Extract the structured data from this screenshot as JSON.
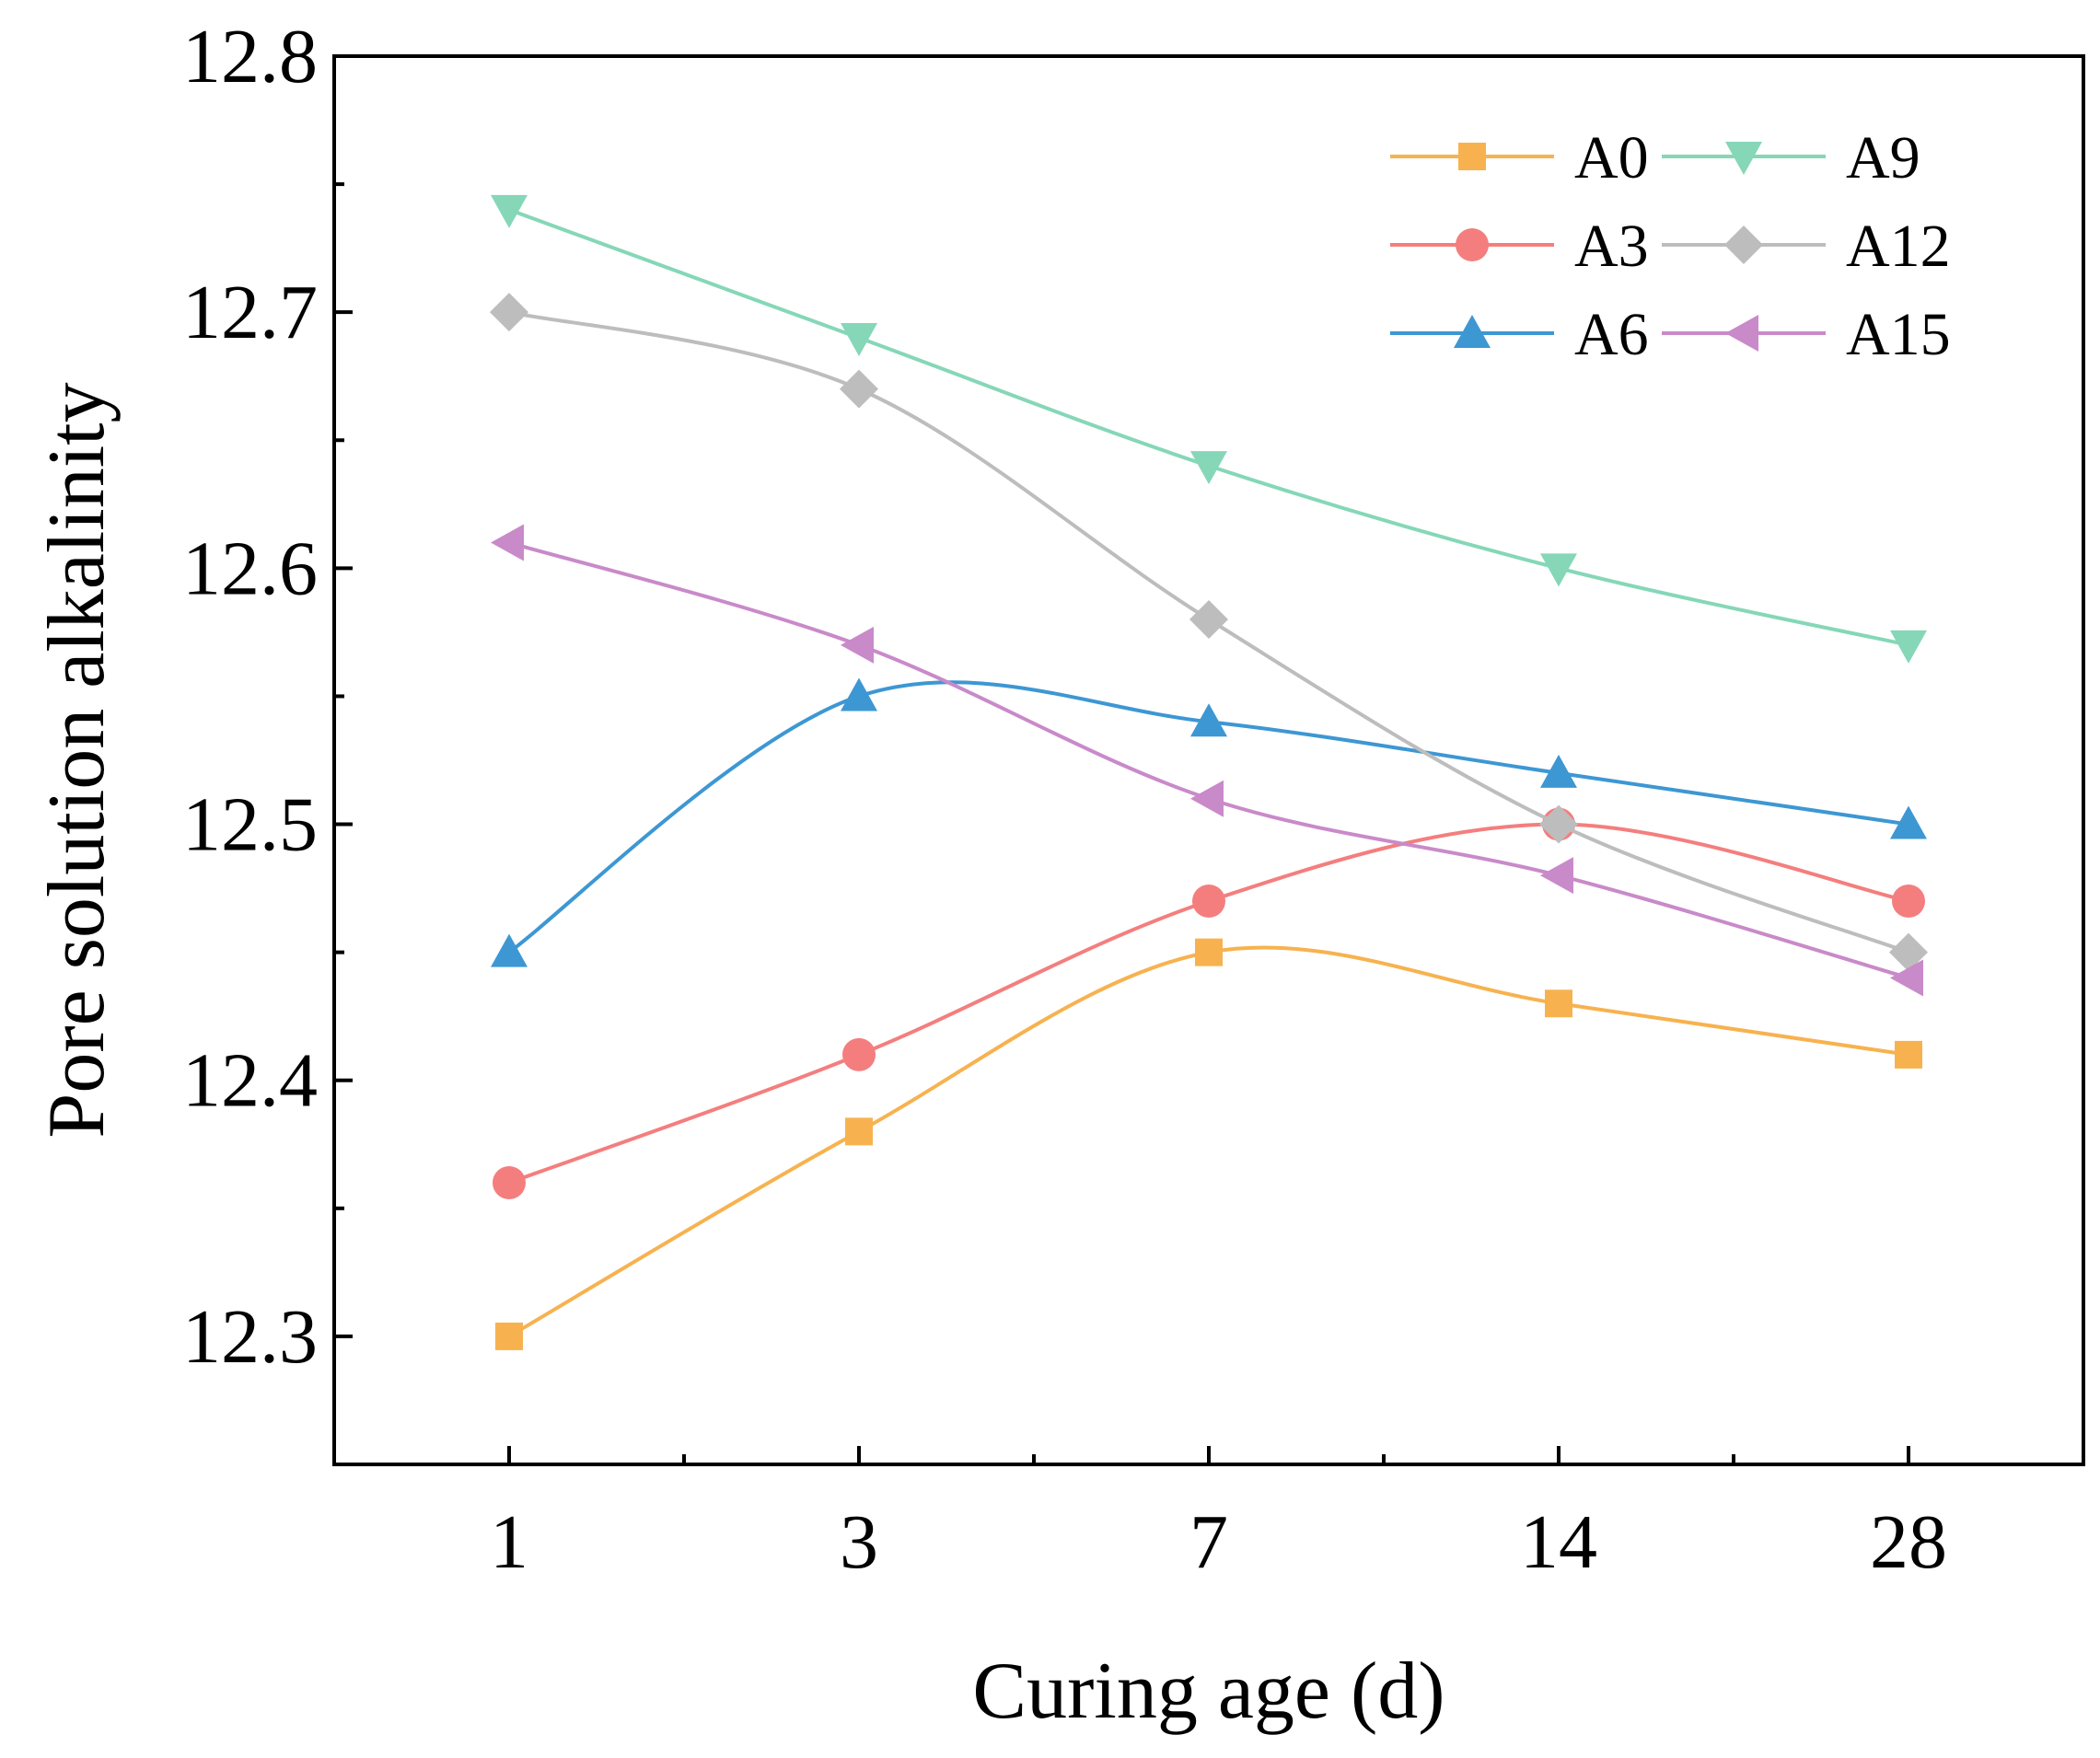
{
  "chart_data": {
    "type": "line",
    "title": "",
    "xlabel": "Curing age (d)",
    "ylabel": "Pore solution alkalinity",
    "categories": [
      "1",
      "3",
      "7",
      "14",
      "28"
    ],
    "ylim": [
      12.25,
      12.8
    ],
    "yticks": [
      "12.3",
      "12.4",
      "12.5",
      "12.6",
      "12.7",
      "12.8"
    ],
    "grid": false,
    "legend_position": "top-right",
    "series": [
      {
        "name": "A0",
        "color": "#F7B24F",
        "marker": "square",
        "values": [
          12.3,
          12.38,
          12.45,
          12.43,
          12.41
        ]
      },
      {
        "name": "A3",
        "color": "#F47E7E",
        "marker": "circle",
        "values": [
          12.36,
          12.41,
          12.47,
          12.5,
          12.47
        ]
      },
      {
        "name": "A6",
        "color": "#3D97D3",
        "marker": "triangle-up",
        "values": [
          12.45,
          12.55,
          12.54,
          12.52,
          12.5
        ]
      },
      {
        "name": "A9",
        "color": "#85D7B7",
        "marker": "triangle-down",
        "values": [
          12.74,
          12.69,
          12.64,
          12.6,
          12.57
        ]
      },
      {
        "name": "A12",
        "color": "#BDBDBD",
        "marker": "diamond",
        "values": [
          12.7,
          12.67,
          12.58,
          12.5,
          12.45
        ]
      },
      {
        "name": "A15",
        "color": "#C98AC9",
        "marker": "triangle-left",
        "values": [
          12.61,
          12.57,
          12.51,
          12.48,
          12.44
        ]
      }
    ]
  }
}
